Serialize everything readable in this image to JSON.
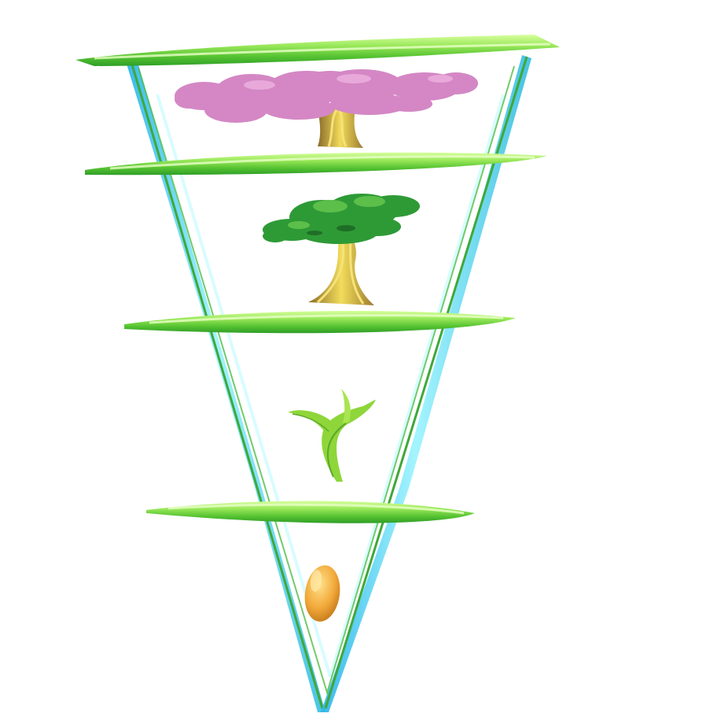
{
  "diagram": {
    "type": "inverted-triangle-growth-stages",
    "stages": [
      {
        "id": "flowering-tree",
        "order": 4,
        "icon": "pink-blossom-tree-icon"
      },
      {
        "id": "mature-tree",
        "order": 3,
        "icon": "green-tree-icon"
      },
      {
        "id": "sprout",
        "order": 2,
        "icon": "sprout-icon"
      },
      {
        "id": "seed",
        "order": 1,
        "icon": "seed-icon"
      }
    ],
    "colors": {
      "frame_cyan": "#3fd4f2",
      "frame_green": "#4cc83a",
      "bar_light": "#b6f27a",
      "bar_green": "#56c232",
      "blossom": "#d487c4",
      "foliage": "#2e9a36",
      "trunk": "#caa63c",
      "sprout": "#8ed63a",
      "seed": "#f0ad3c"
    }
  }
}
